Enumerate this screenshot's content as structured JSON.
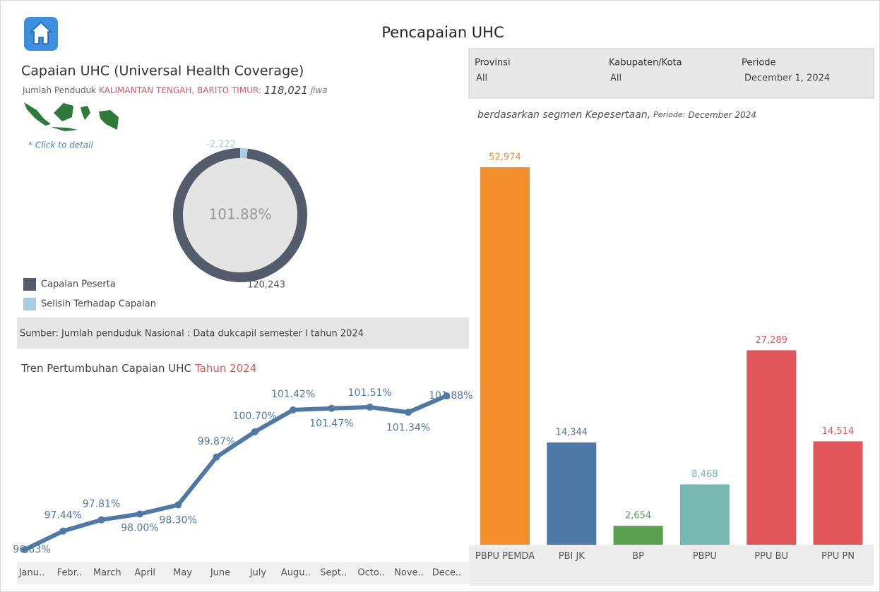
{
  "header": {
    "title": "Pencapaian UHC"
  },
  "filters": [
    {
      "label": "Provinsi",
      "value": "All"
    },
    {
      "label": "Kabupaten/Kota",
      "value": "All"
    },
    {
      "label": "Periode",
      "value": "December 1, 2024"
    }
  ],
  "summary": {
    "title": "Capaian UHC (Universal Health Coverage)",
    "population_label": "Jumlah Penduduk",
    "province": "KALIMANTAN TENGAH,",
    "regency": "BARITO TIMUR:",
    "population": "118,021",
    "unit": "jiwa",
    "map_hint": "* Click to detail",
    "source": "Sumber: Jumlah penduduk Nasional : Data dukcapil semester I tahun 2024"
  },
  "chart_data": [
    {
      "type": "donut",
      "center_label": "101.88%",
      "categories": [
        "Capaian Peserta",
        "Selisih Terhadap Capaian"
      ],
      "values": [
        120243,
        -2222
      ],
      "value_labels": [
        "120,243",
        "-2,222"
      ],
      "colors": [
        "#545c6b",
        "#a8cbe6"
      ]
    },
    {
      "type": "line",
      "title": "Tren Pertumbuhan Capaian UHC",
      "title_highlight": "Tahun 2024",
      "categories": [
        "Janu..",
        "Febr..",
        "March",
        "April",
        "May",
        "June",
        "July",
        "Augu..",
        "Sept..",
        "Octo..",
        "Nove..",
        "Dece.."
      ],
      "values": [
        96.83,
        97.44,
        97.81,
        98.0,
        98.3,
        99.87,
        100.7,
        101.42,
        101.47,
        101.51,
        101.34,
        101.88
      ],
      "value_labels": [
        "96.83%",
        "97.44%",
        "97.81%",
        "98.00%",
        "98.30%",
        "99.87%",
        "100.70%",
        "101.42%",
        "101.47%",
        "101.51%",
        "101.34%",
        "101.88%"
      ],
      "color": "#4e79a7"
    },
    {
      "type": "bar",
      "subtitle": "berdasarkan segmen Kepesertaan,",
      "period_label": "Periode:",
      "period": "December 2024",
      "categories": [
        "PBPU PEMDA",
        "PBI JK",
        "BP",
        "PBPU",
        "PPU BU",
        "PPU PN"
      ],
      "values": [
        52974,
        14344,
        2654,
        8468,
        27289,
        14514
      ],
      "value_labels": [
        "52,974",
        "14,344",
        "2,654",
        "8,468",
        "27,289",
        "14,514"
      ],
      "colors": [
        "#f28e2b",
        "#4e79a7",
        "#59a14f",
        "#76b7b2",
        "#e15759",
        "#e15759"
      ]
    }
  ]
}
